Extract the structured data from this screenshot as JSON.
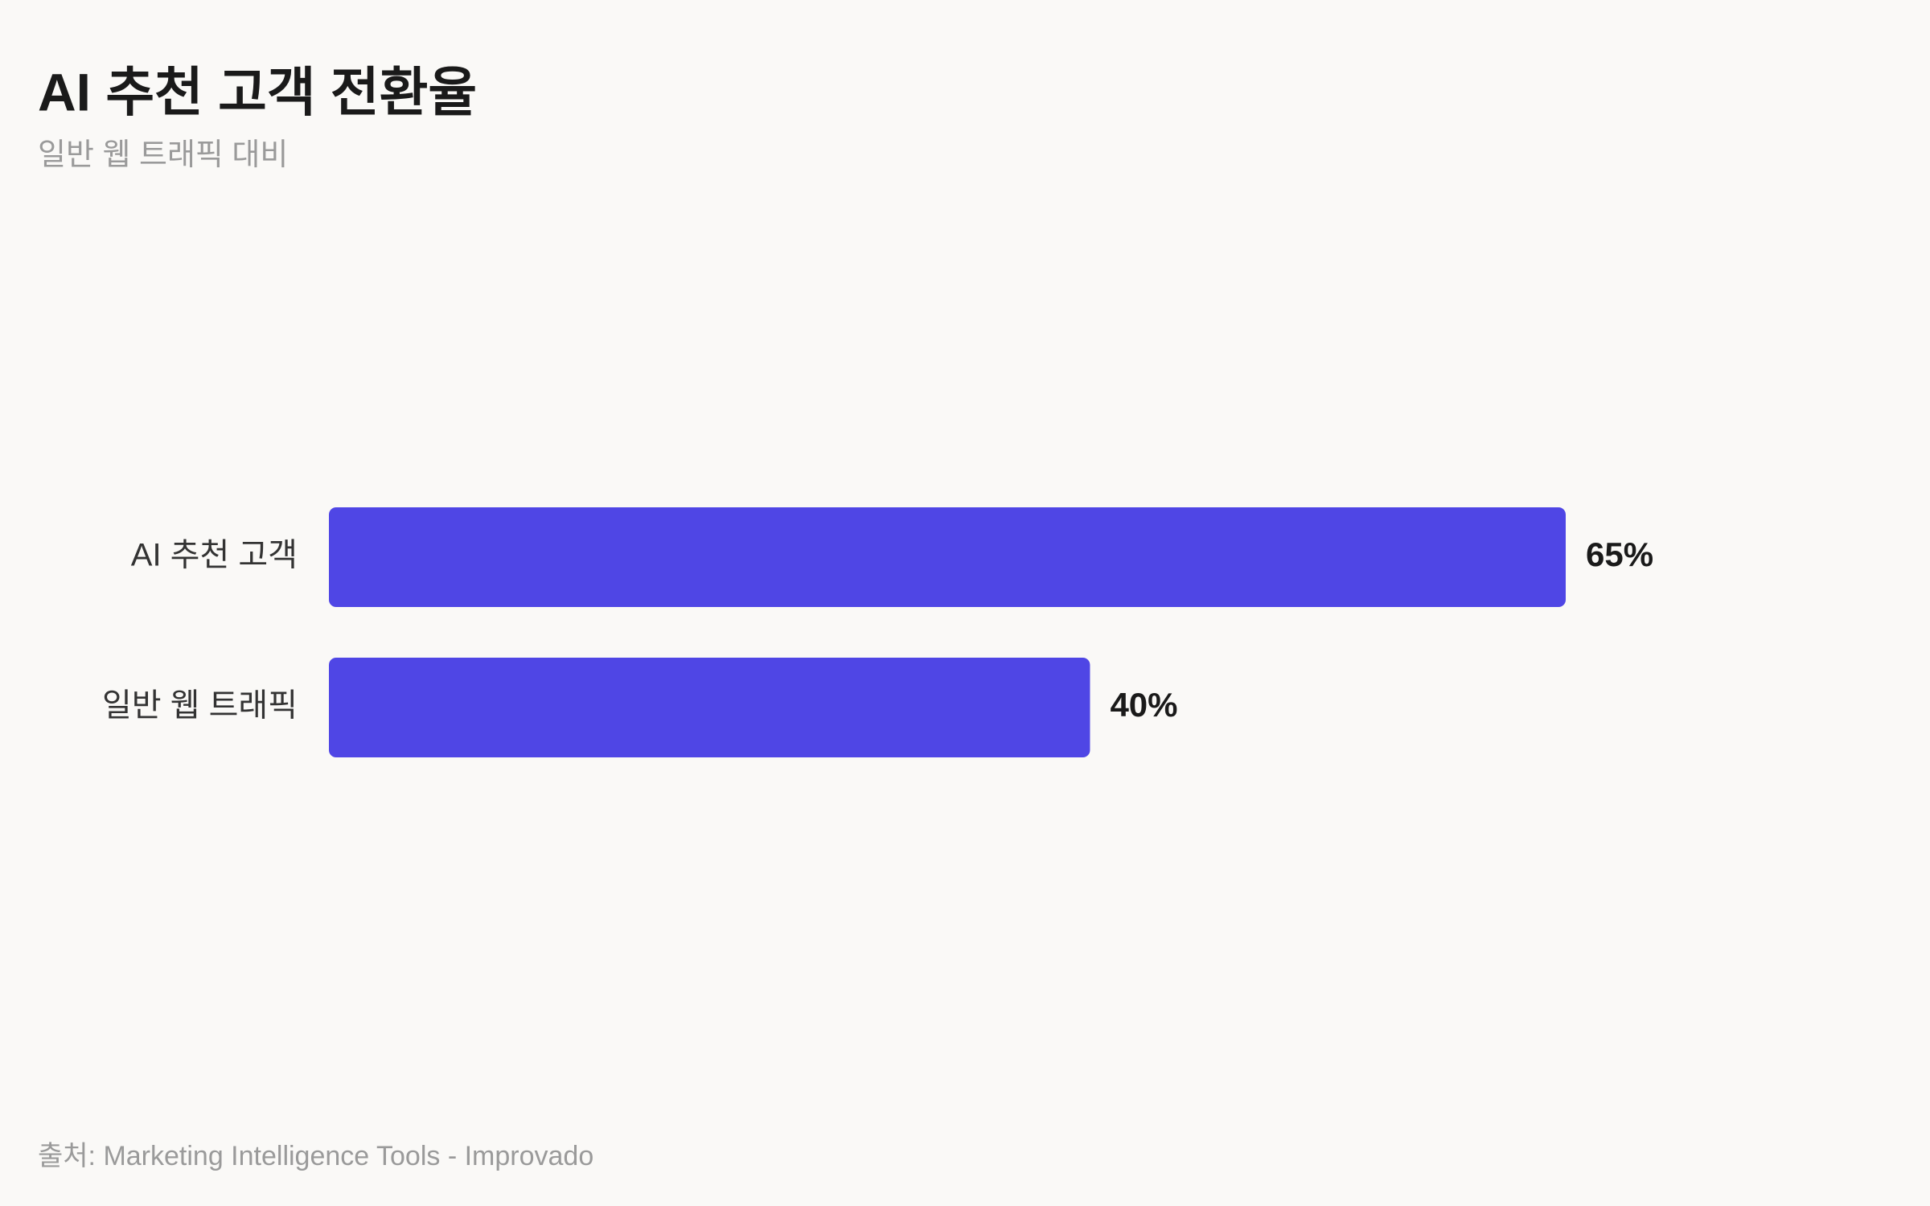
{
  "chart_data": {
    "type": "bar",
    "orientation": "horizontal",
    "title": "AI 추천 고객 전환율",
    "subtitle": "일반 웹 트래픽 대비",
    "categories": [
      "AI 추천 고객",
      "일반 웹 트래픽"
    ],
    "values": [
      65,
      40
    ],
    "value_labels": [
      "65%",
      "40%"
    ],
    "color": "#4f46e5",
    "source": "출처: Marketing Intelligence Tools - Improvado"
  }
}
